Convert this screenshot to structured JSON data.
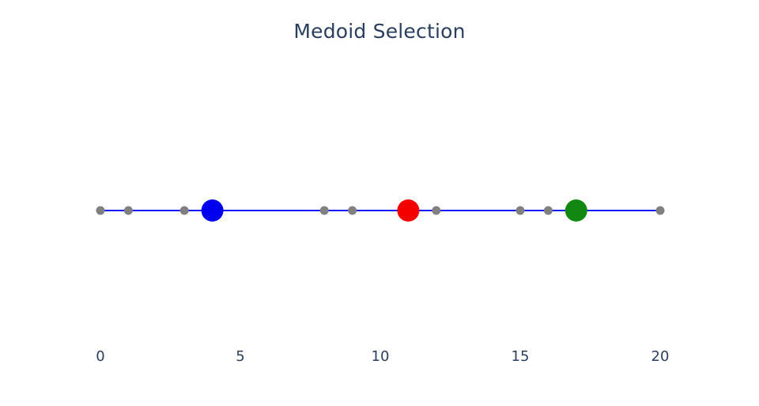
{
  "title": "Medoid Selection",
  "colors": {
    "background": "#ffffff",
    "text": "#2a3f5f",
    "line": "#1414ff",
    "point": "#808080",
    "medoid_blue": "#0000ee",
    "medoid_red": "#f40000",
    "medoid_green": "#128812"
  },
  "chart_data": {
    "type": "scatter",
    "title": "Medoid Selection",
    "mode": "lines+markers",
    "x": [
      0,
      1,
      3,
      4,
      8,
      9,
      11,
      12,
      15,
      16,
      17,
      20
    ],
    "y": [
      0,
      0,
      0,
      0,
      0,
      0,
      0,
      0,
      0,
      0,
      0,
      0
    ],
    "line_color": "#1414ff",
    "marker_color": "#808080",
    "medoids": [
      {
        "name": "medoid-1",
        "x": 4,
        "y": 0,
        "color": "#0000ee"
      },
      {
        "name": "medoid-2",
        "x": 11,
        "y": 0,
        "color": "#f40000"
      },
      {
        "name": "medoid-3",
        "x": 17,
        "y": 0,
        "color": "#128812"
      }
    ],
    "xlabel": "",
    "ylabel": "",
    "xticks": [
      "0",
      "5",
      "10",
      "15",
      "20"
    ],
    "xtick_values": [
      0,
      5,
      10,
      15,
      20
    ],
    "xlim": [
      0,
      20
    ],
    "grid": false,
    "legend": false
  }
}
